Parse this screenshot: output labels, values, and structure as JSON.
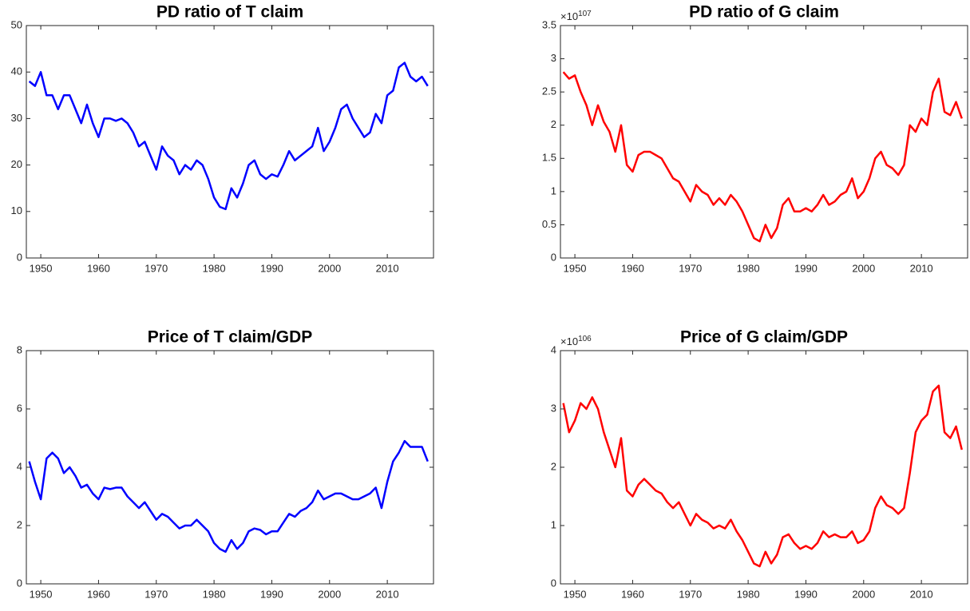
{
  "chart_data": [
    {
      "type": "line",
      "title": "PD ratio of T claim",
      "xlim": [
        1947.5,
        2018
      ],
      "xticks": [
        1950,
        1960,
        1970,
        1980,
        1990,
        2000,
        2010
      ],
      "ylim": [
        0,
        50
      ],
      "yticks": [
        0,
        10,
        20,
        30,
        40,
        50
      ],
      "x": [
        1948,
        1949,
        1950,
        1951,
        1952,
        1953,
        1954,
        1955,
        1956,
        1957,
        1958,
        1959,
        1960,
        1961,
        1962,
        1963,
        1964,
        1965,
        1966,
        1967,
        1968,
        1969,
        1970,
        1971,
        1972,
        1973,
        1974,
        1975,
        1976,
        1977,
        1978,
        1979,
        1980,
        1981,
        1982,
        1983,
        1984,
        1985,
        1986,
        1987,
        1988,
        1989,
        1990,
        1991,
        1992,
        1993,
        1994,
        1995,
        1996,
        1997,
        1998,
        1999,
        2000,
        2001,
        2002,
        2003,
        2004,
        2005,
        2006,
        2007,
        2008,
        2009,
        2010,
        2011,
        2012,
        2013,
        2014,
        2015,
        2016,
        2017
      ],
      "series": [
        {
          "color": "#0000ff",
          "values": [
            38,
            37,
            40,
            35,
            35,
            32,
            35,
            35,
            32,
            29,
            33,
            29,
            26,
            30,
            30,
            29.5,
            30,
            29,
            27,
            24,
            25,
            22,
            19,
            24,
            22,
            21,
            18,
            20,
            19,
            21,
            20,
            17,
            13,
            11,
            10.5,
            15,
            13,
            16,
            20,
            21,
            18,
            17,
            18,
            17.5,
            20,
            23,
            21,
            22,
            23,
            24,
            28,
            23,
            25,
            28,
            32,
            33,
            30,
            28,
            26,
            27,
            31,
            29,
            35,
            36,
            41,
            42,
            39,
            38,
            39,
            37
          ]
        }
      ]
    },
    {
      "type": "line",
      "title": "PD ratio of G claim",
      "y_multiplier": {
        "base": "×10",
        "exponent": "107"
      },
      "xlim": [
        1947.5,
        2018
      ],
      "xticks": [
        1950,
        1960,
        1970,
        1980,
        1990,
        2000,
        2010
      ],
      "ylim": [
        0,
        3.5
      ],
      "yticks": [
        0,
        0.5,
        1,
        1.5,
        2,
        2.5,
        3,
        3.5
      ],
      "x": [
        1948,
        1949,
        1950,
        1951,
        1952,
        1953,
        1954,
        1955,
        1956,
        1957,
        1958,
        1959,
        1960,
        1961,
        1962,
        1963,
        1964,
        1965,
        1966,
        1967,
        1968,
        1969,
        1970,
        1971,
        1972,
        1973,
        1974,
        1975,
        1976,
        1977,
        1978,
        1979,
        1980,
        1981,
        1982,
        1983,
        1984,
        1985,
        1986,
        1987,
        1988,
        1989,
        1990,
        1991,
        1992,
        1993,
        1994,
        1995,
        1996,
        1997,
        1998,
        1999,
        2000,
        2001,
        2002,
        2003,
        2004,
        2005,
        2006,
        2007,
        2008,
        2009,
        2010,
        2011,
        2012,
        2013,
        2014,
        2015,
        2016,
        2017
      ],
      "series": [
        {
          "color": "#ff0000",
          "values": [
            2.8,
            2.7,
            2.75,
            2.5,
            2.3,
            2.0,
            2.3,
            2.05,
            1.9,
            1.6,
            2.0,
            1.4,
            1.3,
            1.55,
            1.6,
            1.6,
            1.55,
            1.5,
            1.35,
            1.2,
            1.15,
            1.0,
            0.85,
            1.1,
            1.0,
            0.95,
            0.8,
            0.9,
            0.8,
            0.95,
            0.85,
            0.7,
            0.5,
            0.3,
            0.25,
            0.5,
            0.3,
            0.45,
            0.8,
            0.9,
            0.7,
            0.7,
            0.75,
            0.7,
            0.8,
            0.95,
            0.8,
            0.85,
            0.95,
            1.0,
            1.2,
            0.9,
            1.0,
            1.2,
            1.5,
            1.6,
            1.4,
            1.35,
            1.25,
            1.4,
            2.0,
            1.9,
            2.1,
            2.0,
            2.5,
            2.7,
            2.2,
            2.15,
            2.35,
            2.1
          ]
        }
      ]
    },
    {
      "type": "line",
      "title": "Price of T claim/GDP",
      "xlim": [
        1947.5,
        2018
      ],
      "xticks": [
        1950,
        1960,
        1970,
        1980,
        1990,
        2000,
        2010
      ],
      "ylim": [
        0,
        8
      ],
      "yticks": [
        0,
        2,
        4,
        6,
        8
      ],
      "x": [
        1948,
        1949,
        1950,
        1951,
        1952,
        1953,
        1954,
        1955,
        1956,
        1957,
        1958,
        1959,
        1960,
        1961,
        1962,
        1963,
        1964,
        1965,
        1966,
        1967,
        1968,
        1969,
        1970,
        1971,
        1972,
        1973,
        1974,
        1975,
        1976,
        1977,
        1978,
        1979,
        1980,
        1981,
        1982,
        1983,
        1984,
        1985,
        1986,
        1987,
        1988,
        1989,
        1990,
        1991,
        1992,
        1993,
        1994,
        1995,
        1996,
        1997,
        1998,
        1999,
        2000,
        2001,
        2002,
        2003,
        2004,
        2005,
        2006,
        2007,
        2008,
        2009,
        2010,
        2011,
        2012,
        2013,
        2014,
        2015,
        2016,
        2017
      ],
      "series": [
        {
          "color": "#0000ff",
          "values": [
            4.2,
            3.5,
            2.9,
            4.3,
            4.5,
            4.3,
            3.8,
            4.0,
            3.7,
            3.3,
            3.4,
            3.1,
            2.9,
            3.3,
            3.25,
            3.3,
            3.3,
            3.0,
            2.8,
            2.6,
            2.8,
            2.5,
            2.2,
            2.4,
            2.3,
            2.1,
            1.9,
            2.0,
            2.0,
            2.2,
            2.0,
            1.8,
            1.4,
            1.2,
            1.1,
            1.5,
            1.2,
            1.4,
            1.8,
            1.9,
            1.85,
            1.7,
            1.8,
            1.8,
            2.1,
            2.4,
            2.3,
            2.5,
            2.6,
            2.8,
            3.2,
            2.9,
            3.0,
            3.1,
            3.1,
            3.0,
            2.9,
            2.9,
            3.0,
            3.1,
            3.3,
            2.6,
            3.5,
            4.2,
            4.5,
            4.9,
            4.7,
            4.7,
            4.7,
            4.2
          ]
        }
      ]
    },
    {
      "type": "line",
      "title": "Price of G claim/GDP",
      "y_multiplier": {
        "base": "×10",
        "exponent": "106"
      },
      "xlim": [
        1947.5,
        2018
      ],
      "xticks": [
        1950,
        1960,
        1970,
        1980,
        1990,
        2000,
        2010
      ],
      "ylim": [
        0,
        4
      ],
      "yticks": [
        0,
        1,
        2,
        3,
        4
      ],
      "x": [
        1948,
        1949,
        1950,
        1951,
        1952,
        1953,
        1954,
        1955,
        1956,
        1957,
        1958,
        1959,
        1960,
        1961,
        1962,
        1963,
        1964,
        1965,
        1966,
        1967,
        1968,
        1969,
        1970,
        1971,
        1972,
        1973,
        1974,
        1975,
        1976,
        1977,
        1978,
        1979,
        1980,
        1981,
        1982,
        1983,
        1984,
        1985,
        1986,
        1987,
        1988,
        1989,
        1990,
        1991,
        1992,
        1993,
        1994,
        1995,
        1996,
        1997,
        1998,
        1999,
        2000,
        2001,
        2002,
        2003,
        2004,
        2005,
        2006,
        2007,
        2008,
        2009,
        2010,
        2011,
        2012,
        2013,
        2014,
        2015,
        2016,
        2017
      ],
      "series": [
        {
          "color": "#ff0000",
          "values": [
            3.1,
            2.6,
            2.8,
            3.1,
            3.0,
            3.2,
            3.0,
            2.6,
            2.3,
            2.0,
            2.5,
            1.6,
            1.5,
            1.7,
            1.8,
            1.7,
            1.6,
            1.55,
            1.4,
            1.3,
            1.4,
            1.2,
            1.0,
            1.2,
            1.1,
            1.05,
            0.95,
            1.0,
            0.95,
            1.1,
            0.9,
            0.75,
            0.55,
            0.35,
            0.3,
            0.55,
            0.35,
            0.5,
            0.8,
            0.85,
            0.7,
            0.6,
            0.65,
            0.6,
            0.7,
            0.9,
            0.8,
            0.85,
            0.8,
            0.8,
            0.9,
            0.7,
            0.75,
            0.9,
            1.3,
            1.5,
            1.35,
            1.3,
            1.2,
            1.3,
            1.9,
            2.6,
            2.8,
            2.9,
            3.3,
            3.4,
            2.6,
            2.5,
            2.7,
            2.3
          ]
        }
      ]
    }
  ]
}
